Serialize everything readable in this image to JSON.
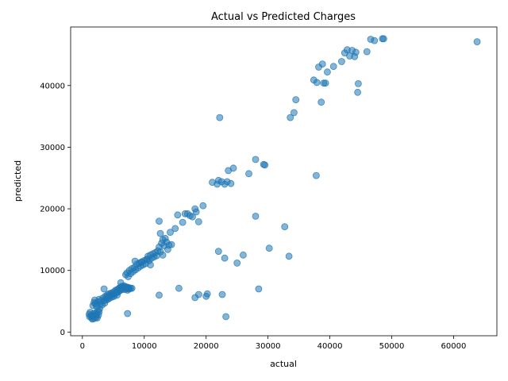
{
  "chart_data": {
    "type": "scatter",
    "title": "Actual vs Predicted Charges",
    "xlabel": "actual",
    "ylabel": "predicted",
    "xlim": [
      -1900,
      67000
    ],
    "ylim": [
      -600,
      49500
    ],
    "xticks": [
      0,
      10000,
      20000,
      30000,
      40000,
      50000,
      60000
    ],
    "yticks": [
      0,
      10000,
      20000,
      30000,
      40000
    ],
    "grid": false,
    "marker_color": "#1f77b4",
    "marker_alpha": 0.55,
    "points": [
      [
        1100,
        2900
      ],
      [
        1150,
        2500
      ],
      [
        1250,
        3200
      ],
      [
        1400,
        2700
      ],
      [
        1500,
        2300
      ],
      [
        1600,
        2100
      ],
      [
        1700,
        2600
      ],
      [
        1800,
        3000
      ],
      [
        1900,
        2200
      ],
      [
        2000,
        2700
      ],
      [
        2100,
        3100
      ],
      [
        2200,
        2400
      ],
      [
        2300,
        2900
      ],
      [
        2400,
        2300
      ],
      [
        2500,
        3500
      ],
      [
        2600,
        2800
      ],
      [
        2700,
        3300
      ],
      [
        2800,
        3800
      ],
      [
        1700,
        4300
      ],
      [
        1900,
        4800
      ],
      [
        2000,
        5200
      ],
      [
        2100,
        4600
      ],
      [
        2300,
        4200
      ],
      [
        2500,
        4900
      ],
      [
        2700,
        5300
      ],
      [
        2900,
        4500
      ],
      [
        3000,
        5000
      ],
      [
        3200,
        4400
      ],
      [
        3300,
        5500
      ],
      [
        3500,
        5100
      ],
      [
        3600,
        4700
      ],
      [
        3700,
        5800
      ],
      [
        3800,
        5200
      ],
      [
        3900,
        5600
      ],
      [
        4000,
        6000
      ],
      [
        4100,
        5300
      ],
      [
        4200,
        5700
      ],
      [
        4300,
        6200
      ],
      [
        4400,
        5500
      ],
      [
        4500,
        5900
      ],
      [
        4600,
        6300
      ],
      [
        4700,
        6000
      ],
      [
        4800,
        5700
      ],
      [
        4900,
        6400
      ],
      [
        5000,
        6100
      ],
      [
        5100,
        5800
      ],
      [
        5200,
        6600
      ],
      [
        5300,
        6200
      ],
      [
        5400,
        6800
      ],
      [
        5500,
        6400
      ],
      [
        5600,
        6000
      ],
      [
        5700,
        6900
      ],
      [
        5800,
        6500
      ],
      [
        5900,
        7100
      ],
      [
        6000,
        6700
      ],
      [
        6100,
        7200
      ],
      [
        6200,
        6800
      ],
      [
        6300,
        7400
      ],
      [
        6400,
        7000
      ],
      [
        6500,
        7300
      ],
      [
        6600,
        7100
      ],
      [
        6700,
        7500
      ],
      [
        6800,
        6900
      ],
      [
        6900,
        7400
      ],
      [
        7000,
        7200
      ],
      [
        7100,
        7000
      ],
      [
        7200,
        7300
      ],
      [
        7300,
        6800
      ],
      [
        7400,
        7100
      ],
      [
        7500,
        7200
      ],
      [
        7600,
        7000
      ],
      [
        7800,
        7100
      ],
      [
        8000,
        7100
      ],
      [
        3500,
        7000
      ],
      [
        6200,
        8000
      ],
      [
        7300,
        3000
      ],
      [
        7000,
        9300
      ],
      [
        7200,
        9600
      ],
      [
        7400,
        9000
      ],
      [
        7600,
        10000
      ],
      [
        7800,
        9500
      ],
      [
        8000,
        10300
      ],
      [
        8200,
        9800
      ],
      [
        8400,
        10500
      ],
      [
        8600,
        10100
      ],
      [
        8800,
        11000
      ],
      [
        9000,
        10400
      ],
      [
        9200,
        11200
      ],
      [
        9400,
        10700
      ],
      [
        9600,
        11400
      ],
      [
        9800,
        10900
      ],
      [
        10000,
        11600
      ],
      [
        10200,
        11100
      ],
      [
        10400,
        11800
      ],
      [
        10600,
        12300
      ],
      [
        10800,
        11600
      ],
      [
        11000,
        12500
      ],
      [
        11200,
        12000
      ],
      [
        11400,
        12700
      ],
      [
        11600,
        12200
      ],
      [
        11800,
        12900
      ],
      [
        12000,
        12400
      ],
      [
        12200,
        13200
      ],
      [
        12400,
        13800
      ],
      [
        12600,
        13000
      ],
      [
        12800,
        14400
      ],
      [
        13000,
        15000
      ],
      [
        13200,
        14000
      ],
      [
        13400,
        15200
      ],
      [
        13600,
        14600
      ],
      [
        13800,
        13400
      ],
      [
        14000,
        14100
      ],
      [
        14200,
        16200
      ],
      [
        14400,
        14200
      ],
      [
        15000,
        16800
      ],
      [
        15400,
        19000
      ],
      [
        16200,
        17800
      ],
      [
        16600,
        19200
      ],
      [
        17000,
        19200
      ],
      [
        17400,
        18900
      ],
      [
        17800,
        18700
      ],
      [
        18200,
        20000
      ],
      [
        18400,
        19500
      ],
      [
        18800,
        17900
      ],
      [
        19500,
        20500
      ],
      [
        12400,
        18000
      ],
      [
        12600,
        16000
      ],
      [
        13000,
        12500
      ],
      [
        11000,
        10900
      ],
      [
        8500,
        11500
      ],
      [
        9500,
        11300
      ],
      [
        10500,
        11800
      ],
      [
        21000,
        24300
      ],
      [
        21800,
        24000
      ],
      [
        22000,
        24600
      ],
      [
        22500,
        24400
      ],
      [
        23000,
        24000
      ],
      [
        23400,
        24400
      ],
      [
        23600,
        26200
      ],
      [
        24000,
        24100
      ],
      [
        24400,
        26600
      ],
      [
        26900,
        25700
      ],
      [
        28000,
        28000
      ],
      [
        29300,
        27200
      ],
      [
        29500,
        27100
      ],
      [
        22200,
        34800
      ],
      [
        12400,
        6000
      ],
      [
        15600,
        7100
      ],
      [
        18200,
        5600
      ],
      [
        18800,
        6100
      ],
      [
        20000,
        5800
      ],
      [
        20200,
        6200
      ],
      [
        22000,
        13100
      ],
      [
        22600,
        6100
      ],
      [
        23000,
        12000
      ],
      [
        23200,
        2500
      ],
      [
        25000,
        11200
      ],
      [
        26000,
        12500
      ],
      [
        28000,
        18800
      ],
      [
        28500,
        7000
      ],
      [
        30200,
        13600
      ],
      [
        32700,
        17100
      ],
      [
        33400,
        12300
      ],
      [
        33600,
        34800
      ],
      [
        34200,
        35600
      ],
      [
        34500,
        37700
      ],
      [
        37800,
        25400
      ],
      [
        37400,
        40900
      ],
      [
        37900,
        40500
      ],
      [
        38200,
        43000
      ],
      [
        38600,
        37300
      ],
      [
        38800,
        43500
      ],
      [
        39000,
        40400
      ],
      [
        39300,
        40400
      ],
      [
        39600,
        42200
      ],
      [
        40600,
        43100
      ],
      [
        41900,
        43900
      ],
      [
        42400,
        45300
      ],
      [
        42800,
        45800
      ],
      [
        43200,
        44800
      ],
      [
        43600,
        45700
      ],
      [
        44000,
        44700
      ],
      [
        44200,
        45400
      ],
      [
        44500,
        38900
      ],
      [
        44600,
        40300
      ],
      [
        46000,
        45500
      ],
      [
        46600,
        47500
      ],
      [
        47200,
        47300
      ],
      [
        48500,
        47600
      ],
      [
        48700,
        47600
      ],
      [
        63800,
        47100
      ]
    ]
  }
}
